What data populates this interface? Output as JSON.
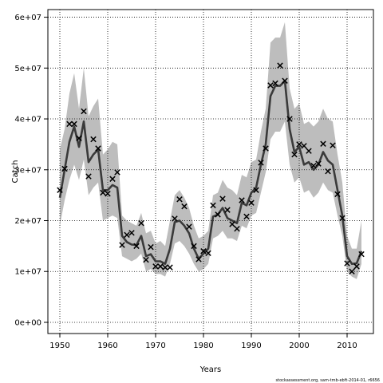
{
  "chart_data": {
    "type": "line",
    "xlabel": "Years",
    "ylabel": "Catch",
    "xlim": [
      1947.5,
      2015.5
    ],
    "ylim": [
      -2200000,
      61500000
    ],
    "x_ticks": [
      1950,
      1960,
      1970,
      1980,
      1990,
      2000,
      2010
    ],
    "y_ticks": [
      {
        "value": 0,
        "label": "0e+00"
      },
      {
        "value": 10000000,
        "label": "1e+07"
      },
      {
        "value": 20000000,
        "label": "2e+07"
      },
      {
        "value": 30000000,
        "label": "3e+07"
      },
      {
        "value": 40000000,
        "label": "4e+07"
      },
      {
        "value": 50000000,
        "label": "5e+07"
      },
      {
        "value": 60000000,
        "label": "6e+07"
      }
    ],
    "grid": true,
    "years": [
      1950,
      1951,
      1952,
      1953,
      1954,
      1955,
      1956,
      1957,
      1958,
      1959,
      1960,
      1961,
      1962,
      1963,
      1964,
      1965,
      1966,
      1967,
      1968,
      1969,
      1970,
      1971,
      1972,
      1973,
      1974,
      1975,
      1976,
      1977,
      1978,
      1979,
      1980,
      1981,
      1982,
      1983,
      1984,
      1985,
      1986,
      1987,
      1988,
      1989,
      1990,
      1991,
      1992,
      1993,
      1994,
      1995,
      1996,
      1997,
      1998,
      1999,
      2000,
      2001,
      2002,
      2003,
      2004,
      2005,
      2006,
      2007,
      2008,
      2009,
      2010,
      2011,
      2012,
      2013
    ],
    "series": [
      {
        "role": "estimate",
        "values": [
          24500000,
          30000000,
          35500000,
          38500000,
          34500000,
          39500000,
          31500000,
          33000000,
          34000000,
          26000000,
          26000000,
          27000000,
          26500000,
          17000000,
          15800000,
          15300000,
          15200000,
          17000000,
          13000000,
          13400000,
          12000000,
          12000000,
          11500000,
          14500000,
          19700000,
          20000000,
          19000000,
          17500000,
          14500000,
          12500000,
          13500000,
          14500000,
          20800000,
          21200000,
          22500000,
          20500000,
          20000000,
          19500000,
          23500000,
          23000000,
          25500000,
          26500000,
          31000000,
          35000000,
          44500000,
          46500000,
          46500000,
          47500000,
          38000000,
          33500000,
          34500000,
          31000000,
          31500000,
          30000000,
          31000000,
          33500000,
          31800000,
          31000000,
          26000000,
          21000000,
          13000000,
          11500000,
          11600000,
          14000000
        ]
      },
      {
        "role": "upper",
        "values": [
          34000000,
          38000000,
          45000000,
          49000000,
          42000000,
          50000000,
          40500000,
          42500000,
          44000000,
          33000000,
          34000000,
          35500000,
          35000000,
          21000000,
          20000000,
          19500000,
          19000000,
          21500000,
          17500000,
          18000000,
          15500000,
          16000000,
          15000000,
          20000000,
          25000000,
          26000000,
          24500000,
          22500000,
          19000000,
          16500000,
          17000000,
          18000000,
          25000000,
          25500000,
          28000000,
          26500000,
          26000000,
          25000000,
          29000000,
          28500000,
          31500000,
          32000000,
          37500000,
          42000000,
          55000000,
          56000000,
          56000000,
          59000000,
          46000000,
          42000000,
          43000000,
          39000000,
          39500000,
          38500000,
          39500000,
          42000000,
          40000000,
          39500000,
          33000000,
          27500000,
          17000000,
          14500000,
          14500000,
          20000000
        ]
      },
      {
        "role": "lower",
        "values": [
          19000000,
          24000000,
          28000000,
          31000000,
          28000000,
          32000000,
          25000000,
          26500000,
          27500000,
          20000000,
          20500000,
          21000000,
          20500000,
          13000000,
          12500000,
          12000000,
          12500000,
          13500000,
          10000000,
          10500000,
          9500000,
          9500000,
          9000000,
          11500000,
          15500000,
          16000000,
          15000000,
          13500000,
          11500000,
          10000000,
          10500000,
          11500000,
          16500000,
          17000000,
          18000000,
          16500000,
          16500000,
          16000000,
          19000000,
          18500000,
          21000000,
          21500000,
          25500000,
          29500000,
          36000000,
          37500000,
          37500000,
          39500000,
          31000000,
          27500000,
          28500000,
          25500000,
          26000000,
          24500000,
          25500000,
          27500000,
          26000000,
          25500000,
          21000000,
          17000000,
          10000000,
          9000000,
          8500000,
          11500000
        ]
      },
      {
        "role": "observed",
        "values": [
          26000000,
          30200000,
          39000000,
          39000000,
          36200000,
          41500000,
          28700000,
          36000000,
          34200000,
          25500000,
          25300000,
          28200000,
          29500000,
          15200000,
          17200000,
          17600000,
          15000000,
          19500000,
          12300000,
          14800000,
          11000000,
          11000000,
          10800000,
          10800000,
          20400000,
          24200000,
          22800000,
          18800000,
          15000000,
          12400000,
          14000000,
          13600000,
          23000000,
          21200000,
          24300000,
          22100000,
          19300000,
          18400000,
          24000000,
          20800000,
          23500000,
          26000000,
          31400000,
          34200000,
          46600000,
          47000000,
          50500000,
          47500000,
          40000000,
          33000000,
          35000000,
          34700000,
          33700000,
          30800000,
          31200000,
          35100000,
          29700000,
          34800000,
          25200000,
          20500000,
          11600000,
          10000000,
          11000000,
          13400000
        ]
      }
    ]
  },
  "footer_text": "stockassessment.org, sam-tmb-ebft-2014-01, r6656"
}
